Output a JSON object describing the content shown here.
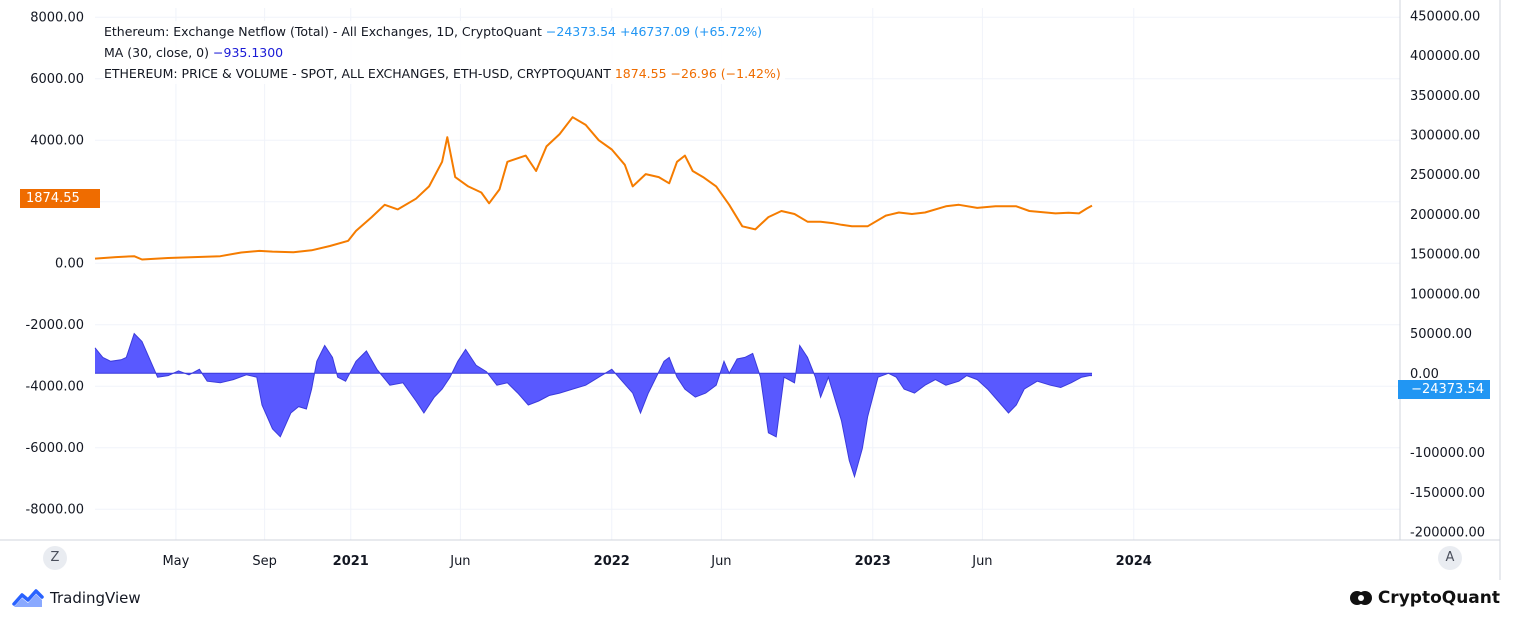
{
  "chart_data": {
    "type": "line+area",
    "left_axis": {
      "ticks": [
        "8000.00",
        "6000.00",
        "4000.00",
        "",
        "0.00",
        "-2000.00",
        "-4000.00",
        "-6000.00",
        "-8000.00"
      ],
      "tick_values": [
        8000,
        6000,
        4000,
        2000,
        0,
        -2000,
        -4000,
        -6000,
        -8000
      ],
      "range": [
        -9000,
        8300
      ]
    },
    "right_axis": {
      "ticks": [
        "450000.00",
        "400000.00",
        "350000.00",
        "300000.00",
        "250000.00",
        "200000.00",
        "150000.00",
        "100000.00",
        "50000.00",
        "0.00",
        "",
        "-100000.00",
        "-150000.00",
        "-200000.00"
      ],
      "tick_values": [
        450000,
        400000,
        350000,
        300000,
        250000,
        200000,
        150000,
        100000,
        50000,
        0,
        -50000,
        -100000,
        -150000,
        -200000
      ],
      "range": [
        -210000,
        460000
      ]
    },
    "x_axis": {
      "ticks": [
        {
          "label": "May",
          "t": 2020.33,
          "bold": false
        },
        {
          "label": "Sep",
          "t": 2020.67,
          "bold": false
        },
        {
          "label": "2021",
          "t": 2021.0,
          "bold": true
        },
        {
          "label": "Jun",
          "t": 2021.42,
          "bold": false
        },
        {
          "label": "2022",
          "t": 2022.0,
          "bold": true
        },
        {
          "label": "Jun",
          "t": 2022.42,
          "bold": false
        },
        {
          "label": "2023",
          "t": 2023.0,
          "bold": true
        },
        {
          "label": "Jun",
          "t": 2023.42,
          "bold": false
        },
        {
          "label": "2024",
          "t": 2024.0,
          "bold": true
        }
      ],
      "range": [
        2020.02,
        2025.02
      ]
    },
    "price_series": {
      "name": "ETHEREUM: PRICE & VOLUME - SPOT, ALL EXCHANGES, ETH-USD, CRYPTOQUANT",
      "color": "#f57c00",
      "axis": "left",
      "points": [
        [
          2020.02,
          150
        ],
        [
          2020.1,
          200
        ],
        [
          2020.17,
          230
        ],
        [
          2020.2,
          120
        ],
        [
          2020.3,
          170
        ],
        [
          2020.4,
          200
        ],
        [
          2020.5,
          230
        ],
        [
          2020.58,
          350
        ],
        [
          2020.65,
          400
        ],
        [
          2020.7,
          380
        ],
        [
          2020.78,
          360
        ],
        [
          2020.85,
          420
        ],
        [
          2020.92,
          560
        ],
        [
          2020.99,
          730
        ],
        [
          2021.02,
          1050
        ],
        [
          2021.08,
          1500
        ],
        [
          2021.13,
          1900
        ],
        [
          2021.18,
          1750
        ],
        [
          2021.25,
          2100
        ],
        [
          2021.3,
          2500
        ],
        [
          2021.35,
          3300
        ],
        [
          2021.37,
          4100
        ],
        [
          2021.4,
          2800
        ],
        [
          2021.45,
          2500
        ],
        [
          2021.5,
          2300
        ],
        [
          2021.53,
          1950
        ],
        [
          2021.57,
          2400
        ],
        [
          2021.6,
          3300
        ],
        [
          2021.67,
          3500
        ],
        [
          2021.71,
          3000
        ],
        [
          2021.75,
          3800
        ],
        [
          2021.8,
          4200
        ],
        [
          2021.85,
          4750
        ],
        [
          2021.9,
          4500
        ],
        [
          2021.95,
          4000
        ],
        [
          2022.0,
          3700
        ],
        [
          2022.05,
          3200
        ],
        [
          2022.08,
          2500
        ],
        [
          2022.13,
          2900
        ],
        [
          2022.18,
          2800
        ],
        [
          2022.22,
          2600
        ],
        [
          2022.25,
          3300
        ],
        [
          2022.28,
          3500
        ],
        [
          2022.31,
          3000
        ],
        [
          2022.35,
          2800
        ],
        [
          2022.4,
          2500
        ],
        [
          2022.45,
          1900
        ],
        [
          2022.5,
          1200
        ],
        [
          2022.55,
          1100
        ],
        [
          2022.6,
          1500
        ],
        [
          2022.65,
          1700
        ],
        [
          2022.7,
          1600
        ],
        [
          2022.75,
          1350
        ],
        [
          2022.8,
          1350
        ],
        [
          2022.85,
          1300
        ],
        [
          2022.88,
          1250
        ],
        [
          2022.92,
          1200
        ],
        [
          2022.98,
          1200
        ],
        [
          2023.05,
          1550
        ],
        [
          2023.1,
          1650
        ],
        [
          2023.15,
          1600
        ],
        [
          2023.2,
          1650
        ],
        [
          2023.28,
          1850
        ],
        [
          2023.33,
          1900
        ],
        [
          2023.4,
          1800
        ],
        [
          2023.47,
          1850
        ],
        [
          2023.55,
          1850
        ],
        [
          2023.6,
          1700
        ],
        [
          2023.7,
          1620
        ],
        [
          2023.75,
          1640
        ],
        [
          2023.79,
          1620
        ],
        [
          2023.82,
          1780
        ],
        [
          2023.84,
          1874.55
        ]
      ]
    },
    "netflow_series": {
      "name": "Ethereum: Exchange Netflow (Total) - All Exchanges, 1D, CryptoQuant",
      "ma_name": "MA (30, close, 0)",
      "color": "#5959ff",
      "axis": "right",
      "points": [
        [
          2020.02,
          32000
        ],
        [
          2020.05,
          20000
        ],
        [
          2020.08,
          15000
        ],
        [
          2020.12,
          17000
        ],
        [
          2020.14,
          20000
        ],
        [
          2020.17,
          50000
        ],
        [
          2020.2,
          40000
        ],
        [
          2020.24,
          10000
        ],
        [
          2020.26,
          -5000
        ],
        [
          2020.3,
          -3000
        ],
        [
          2020.34,
          3000
        ],
        [
          2020.38,
          -2000
        ],
        [
          2020.42,
          5000
        ],
        [
          2020.45,
          -10000
        ],
        [
          2020.5,
          -12000
        ],
        [
          2020.55,
          -8000
        ],
        [
          2020.6,
          -2000
        ],
        [
          2020.64,
          -5000
        ],
        [
          2020.66,
          -40000
        ],
        [
          2020.7,
          -70000
        ],
        [
          2020.73,
          -80000
        ],
        [
          2020.77,
          -50000
        ],
        [
          2020.8,
          -42000
        ],
        [
          2020.83,
          -45000
        ],
        [
          2020.85,
          -20000
        ],
        [
          2020.87,
          15000
        ],
        [
          2020.9,
          35000
        ],
        [
          2020.93,
          20000
        ],
        [
          2020.95,
          -5000
        ],
        [
          2020.98,
          -10000
        ],
        [
          2021.02,
          15000
        ],
        [
          2021.06,
          28000
        ],
        [
          2021.1,
          5000
        ],
        [
          2021.15,
          -15000
        ],
        [
          2021.2,
          -12000
        ],
        [
          2021.25,
          -35000
        ],
        [
          2021.28,
          -50000
        ],
        [
          2021.32,
          -30000
        ],
        [
          2021.35,
          -20000
        ],
        [
          2021.38,
          -5000
        ],
        [
          2021.41,
          15000
        ],
        [
          2021.44,
          30000
        ],
        [
          2021.48,
          10000
        ],
        [
          2021.52,
          2000
        ],
        [
          2021.56,
          -15000
        ],
        [
          2021.6,
          -12000
        ],
        [
          2021.64,
          -25000
        ],
        [
          2021.68,
          -40000
        ],
        [
          2021.72,
          -35000
        ],
        [
          2021.76,
          -28000
        ],
        [
          2021.8,
          -25000
        ],
        [
          2021.85,
          -20000
        ],
        [
          2021.9,
          -15000
        ],
        [
          2021.95,
          -5000
        ],
        [
          2022.0,
          5000
        ],
        [
          2022.04,
          -10000
        ],
        [
          2022.08,
          -25000
        ],
        [
          2022.11,
          -50000
        ],
        [
          2022.14,
          -25000
        ],
        [
          2022.17,
          -5000
        ],
        [
          2022.2,
          15000
        ],
        [
          2022.22,
          20000
        ],
        [
          2022.25,
          -5000
        ],
        [
          2022.28,
          -20000
        ],
        [
          2022.32,
          -30000
        ],
        [
          2022.36,
          -25000
        ],
        [
          2022.4,
          -15000
        ],
        [
          2022.43,
          15000
        ],
        [
          2022.45,
          0
        ],
        [
          2022.48,
          18000
        ],
        [
          2022.51,
          20000
        ],
        [
          2022.54,
          25000
        ],
        [
          2022.57,
          -5000
        ],
        [
          2022.6,
          -75000
        ],
        [
          2022.63,
          -80000
        ],
        [
          2022.66,
          -5000
        ],
        [
          2022.7,
          -12000
        ],
        [
          2022.72,
          35000
        ],
        [
          2022.75,
          20000
        ],
        [
          2022.78,
          -5000
        ],
        [
          2022.8,
          -30000
        ],
        [
          2022.83,
          -5000
        ],
        [
          2022.88,
          -60000
        ],
        [
          2022.91,
          -110000
        ],
        [
          2022.93,
          -130000
        ],
        [
          2022.96,
          -95000
        ],
        [
          2022.98,
          -55000
        ],
        [
          2023.02,
          -5000
        ],
        [
          2023.06,
          0
        ],
        [
          2023.09,
          -5000
        ],
        [
          2023.12,
          -20000
        ],
        [
          2023.16,
          -25000
        ],
        [
          2023.2,
          -15000
        ],
        [
          2023.24,
          -8000
        ],
        [
          2023.28,
          -15000
        ],
        [
          2023.33,
          -10000
        ],
        [
          2023.36,
          -3000
        ],
        [
          2023.4,
          -8000
        ],
        [
          2023.44,
          -20000
        ],
        [
          2023.48,
          -35000
        ],
        [
          2023.52,
          -50000
        ],
        [
          2023.55,
          -40000
        ],
        [
          2023.58,
          -20000
        ],
        [
          2023.63,
          -10000
        ],
        [
          2023.68,
          -15000
        ],
        [
          2023.72,
          -18000
        ],
        [
          2023.76,
          -12000
        ],
        [
          2023.8,
          -5000
        ],
        [
          2023.83,
          -3000
        ],
        [
          2023.84,
          -3000
        ]
      ]
    },
    "title": ""
  },
  "legend": {
    "netflow_label": "Ethereum: Exchange Netflow (Total) - All Exchanges, 1D, CryptoQuant",
    "netflow_value": "−24373.54",
    "netflow_change": "+46737.09 (+65.72%)",
    "ma_label": "MA (30, close, 0)",
    "ma_value": "−935.1300",
    "price_label": "ETHEREUM: PRICE & VOLUME - SPOT, ALL EXCHANGES, ETH-USD, CRYPTOQUANT",
    "price_value": "1874.55",
    "price_change": "−26.96 (−1.42%)"
  },
  "badges": {
    "price_last": "1874.55",
    "netflow_last": "−24373.54"
  },
  "buttons": {
    "left_scale": "Z",
    "right_scale": "A"
  },
  "branding": {
    "left": "TradingView",
    "right": "CryptoQuant"
  },
  "colors": {
    "price": "#f57c00",
    "netflow_fill": "#5959ff",
    "netflow_value": "#2196f3",
    "ma_value": "#1a1ad6"
  }
}
